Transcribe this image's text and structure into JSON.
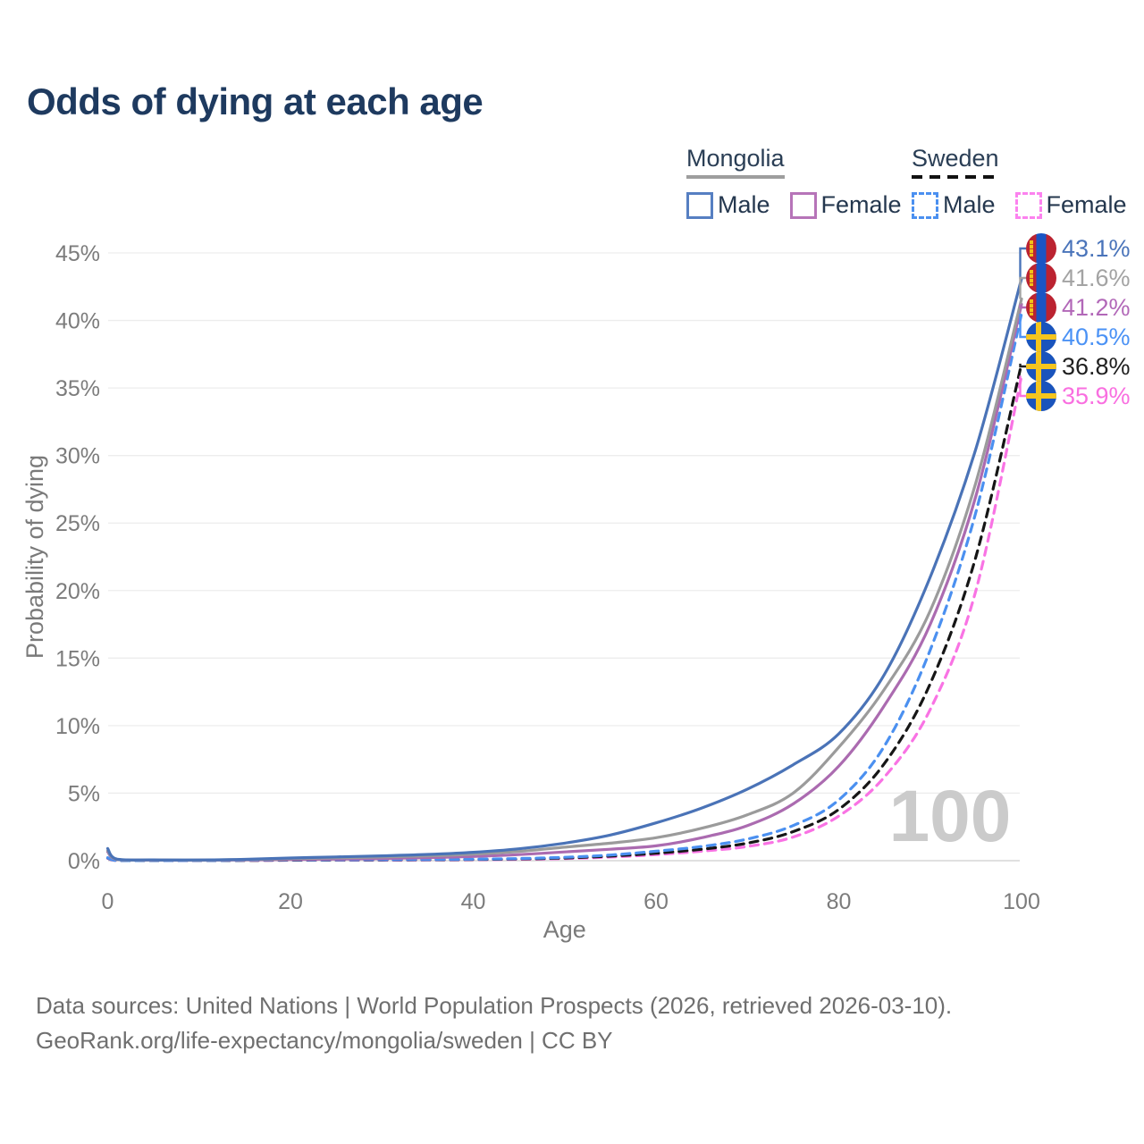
{
  "title": "Odds of dying at each age",
  "legend": {
    "groups": [
      {
        "name": "Mongolia",
        "underline_color": "#9e9e9e",
        "underline_dashed": false,
        "items": [
          {
            "label": "Male",
            "color": "#567fc2",
            "dashed": false
          },
          {
            "label": "Female",
            "color": "#b674b8",
            "dashed": false
          }
        ]
      },
      {
        "name": "Sweden",
        "underline_color": "#111111",
        "underline_dashed": true,
        "items": [
          {
            "label": "Male",
            "color": "#4b90f0",
            "dashed": true
          },
          {
            "label": "Female",
            "color": "#fc82ef",
            "dashed": true
          }
        ]
      }
    ]
  },
  "chart_data": {
    "type": "line",
    "title": "Odds of dying at each age",
    "xlabel": "Age",
    "ylabel": "Probability of dying",
    "xlim": [
      0,
      100
    ],
    "ylim": [
      0,
      45
    ],
    "grid": "horizontal",
    "x_ticks": [
      0,
      20,
      40,
      60,
      80,
      100
    ],
    "y_ticks": [
      {
        "v": 0,
        "label": "0%"
      },
      {
        "v": 5,
        "label": "5%"
      },
      {
        "v": 10,
        "label": "10%"
      },
      {
        "v": 15,
        "label": "15%"
      },
      {
        "v": 20,
        "label": "20%"
      },
      {
        "v": 25,
        "label": "25%"
      },
      {
        "v": 30,
        "label": "30%"
      },
      {
        "v": 35,
        "label": "35%"
      },
      {
        "v": 40,
        "label": "40%"
      },
      {
        "v": 45,
        "label": "45%"
      }
    ],
    "x": [
      0,
      1,
      5,
      10,
      15,
      20,
      25,
      30,
      35,
      40,
      45,
      50,
      55,
      60,
      65,
      70,
      75,
      80,
      85,
      90,
      95,
      100
    ],
    "series": [
      {
        "name": "Mongolia Male",
        "country": "Mongolia",
        "sex": "Male",
        "color": "#4a73b7",
        "dashed": false,
        "values": [
          0.9,
          0.12,
          0.06,
          0.05,
          0.1,
          0.2,
          0.28,
          0.36,
          0.46,
          0.62,
          0.88,
          1.3,
          1.9,
          2.8,
          3.9,
          5.3,
          7.1,
          9.4,
          13.8,
          21.0,
          30.5,
          43.1
        ]
      },
      {
        "name": "Mongolia",
        "country": "Mongolia",
        "sex": "Both",
        "color": "#9b9b9b",
        "dashed": false,
        "values": [
          0.75,
          0.1,
          0.05,
          0.04,
          0.08,
          0.15,
          0.21,
          0.27,
          0.35,
          0.48,
          0.68,
          1.0,
          1.3,
          1.7,
          2.4,
          3.4,
          5.0,
          8.4,
          12.7,
          18.5,
          28.0,
          41.6
        ]
      },
      {
        "name": "Mongolia Female",
        "country": "Mongolia",
        "sex": "Female",
        "color": "#ab6bb0",
        "dashed": false,
        "values": [
          0.65,
          0.09,
          0.04,
          0.03,
          0.05,
          0.09,
          0.12,
          0.16,
          0.22,
          0.31,
          0.45,
          0.65,
          0.85,
          1.1,
          1.7,
          2.6,
          4.2,
          7.0,
          11.5,
          17.5,
          27.0,
          41.2
        ]
      },
      {
        "name": "Sweden Male",
        "country": "Sweden",
        "sex": "Male",
        "color": "#4b90f0",
        "dashed": true,
        "values": [
          0.22,
          0.02,
          0.01,
          0.01,
          0.03,
          0.06,
          0.07,
          0.08,
          0.09,
          0.11,
          0.16,
          0.25,
          0.42,
          0.7,
          1.05,
          1.6,
          2.6,
          4.5,
          8.5,
          15.6,
          25.8,
          40.5
        ]
      },
      {
        "name": "Sweden",
        "country": "Sweden",
        "sex": "Both",
        "color": "#161616",
        "dashed": true,
        "values": [
          0.2,
          0.02,
          0.01,
          0.01,
          0.02,
          0.04,
          0.05,
          0.06,
          0.07,
          0.09,
          0.13,
          0.2,
          0.34,
          0.55,
          0.85,
          1.3,
          2.15,
          3.8,
          7.2,
          13.1,
          22.5,
          36.8
        ]
      },
      {
        "name": "Sweden Female",
        "country": "Sweden",
        "sex": "Female",
        "color": "#f973e4",
        "dashed": true,
        "values": [
          0.18,
          0.02,
          0.01,
          0.01,
          0.02,
          0.03,
          0.04,
          0.04,
          0.05,
          0.07,
          0.1,
          0.16,
          0.27,
          0.45,
          0.7,
          1.05,
          1.75,
          3.3,
          6.2,
          11.2,
          20.0,
          35.9
        ]
      }
    ],
    "end_labels": [
      {
        "value": "43.1%",
        "flag": "mongolia",
        "color": "#4a74ba"
      },
      {
        "value": "41.6%",
        "flag": "mongolia",
        "color": "#a3a3a3"
      },
      {
        "value": "41.2%",
        "flag": "mongolia",
        "color": "#b268b8"
      },
      {
        "value": "40.5%",
        "flag": "sweden",
        "color": "#4b92f5"
      },
      {
        "value": "36.8%",
        "flag": "sweden",
        "color": "#1f1f1f"
      },
      {
        "value": "35.9%",
        "flag": "sweden",
        "color": "#f96fe0"
      }
    ],
    "watermark": "100"
  },
  "footer": {
    "line1": "Data sources: United Nations | World Population Prospects (2026, retrieved 2026-03-10).",
    "line2": "GeoRank.org/life-expectancy/mongolia/sweden | CC BY"
  }
}
